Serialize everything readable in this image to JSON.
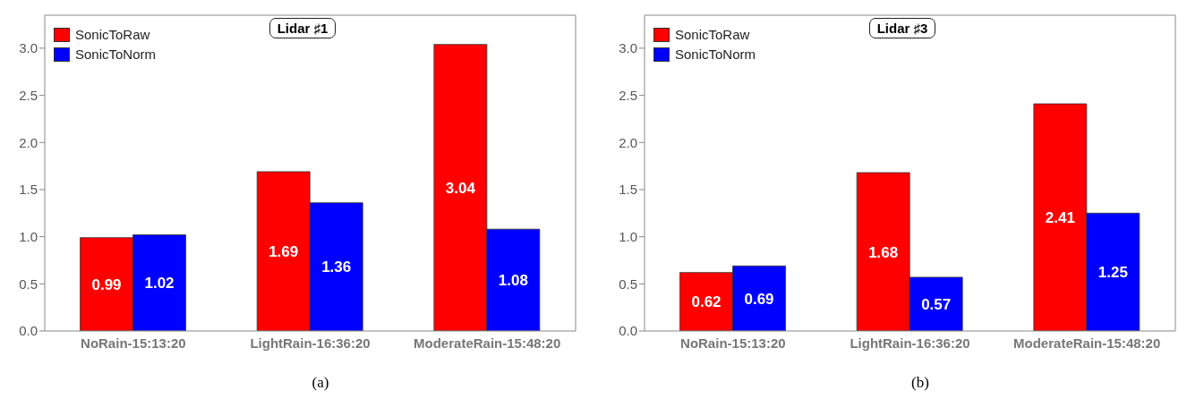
{
  "chart_data": [
    {
      "type": "bar",
      "title": "Lidar ♯1",
      "categories": [
        "NoRain-15:13:20",
        "LightRain-16:36:20",
        "ModerateRain-15:48:20"
      ],
      "series": [
        {
          "name": "SonicToRaw",
          "color": "#ff0000",
          "values": [
            0.99,
            1.69,
            3.04
          ]
        },
        {
          "name": "SonicToNorm",
          "color": "#0000ff",
          "values": [
            1.02,
            1.36,
            1.08
          ]
        }
      ],
      "ylim": [
        0,
        3.35
      ],
      "yticks": [
        {
          "value": 0,
          "label": "0.0"
        },
        0.5,
        {
          "value": 1,
          "label": "1.0"
        },
        1.5,
        {
          "value": 2,
          "label": "2.0"
        },
        2.5,
        {
          "value": 3,
          "label": "3.0"
        }
      ],
      "data_labels": true,
      "legend": "top left",
      "annotations": [
        "(a)"
      ]
    },
    {
      "type": "bar",
      "title": "Lidar ♯3",
      "categories": [
        "NoRain-15:13:20",
        "LightRain-16:36:20",
        "ModerateRain-15:48:20"
      ],
      "series": [
        {
          "name": "SonicToRaw",
          "color": "#ff0000",
          "values": [
            0.62,
            1.68,
            2.41
          ]
        },
        {
          "name": "SonicToNorm",
          "color": "#0000ff",
          "values": [
            0.69,
            0.57,
            1.25
          ]
        }
      ],
      "ylim": [
        0,
        3.35
      ],
      "yticks": [
        {
          "value": 0,
          "label": "0.0"
        },
        0.5,
        {
          "value": 1,
          "label": "1.0"
        },
        1.5,
        {
          "value": 2,
          "label": "2.0"
        },
        2.5,
        {
          "value": 3,
          "label": "3.0"
        }
      ],
      "data_labels": true,
      "legend": "top left",
      "annotations": [
        "(b)"
      ]
    }
  ]
}
